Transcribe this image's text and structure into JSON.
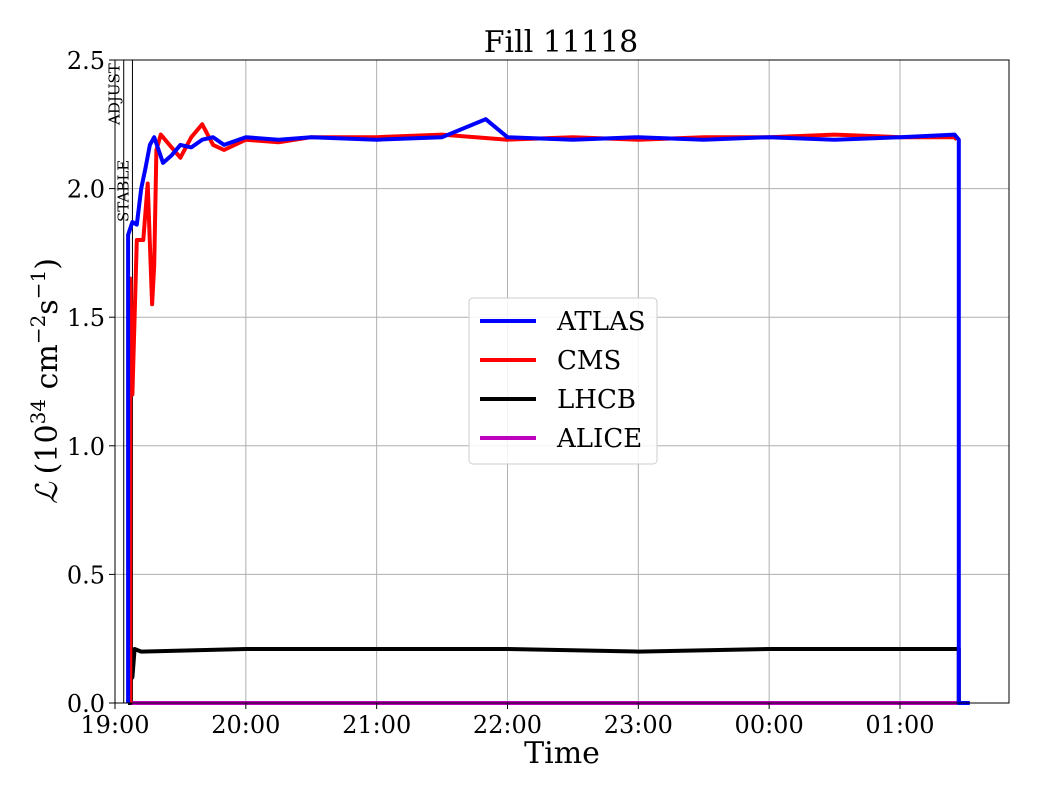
{
  "chart_data": {
    "type": "line",
    "title": "Fill 11118",
    "xlabel": "Time",
    "ylabel": {
      "symbol": "ℒ",
      "unit_open": "(10",
      "unit_exp1": "34",
      "unit_mid": " cm",
      "unit_exp2": "−2",
      "unit_s": "s",
      "unit_exp3": "−1",
      "unit_close": ")"
    },
    "ylim": [
      0.0,
      2.5
    ],
    "xlim": [
      "19:00",
      "01:50"
    ],
    "x_tick_labels": [
      "19:00",
      "20:00",
      "21:00",
      "22:00",
      "23:00",
      "00:00",
      "01:00"
    ],
    "y_tick_labels": [
      "0.0",
      "0.5",
      "1.0",
      "1.5",
      "2.0",
      "2.5"
    ],
    "grid": true,
    "legend_position": "center",
    "events": [
      {
        "label": "ADJUST",
        "time": "19:04"
      },
      {
        "label": "STABLE",
        "time": "19:08"
      }
    ],
    "series": [
      {
        "name": "ATLAS",
        "color": "#0000ff",
        "points": [
          [
            "19:06",
            0.0
          ],
          [
            "19:06",
            1.82
          ],
          [
            "19:08",
            1.87
          ],
          [
            "19:10",
            1.86
          ],
          [
            "19:12",
            2.0
          ],
          [
            "19:14",
            2.08
          ],
          [
            "19:16",
            2.17
          ],
          [
            "19:18",
            2.2
          ],
          [
            "19:20",
            2.15
          ],
          [
            "19:22",
            2.1
          ],
          [
            "19:26",
            2.13
          ],
          [
            "19:30",
            2.17
          ],
          [
            "19:35",
            2.16
          ],
          [
            "19:40",
            2.19
          ],
          [
            "19:45",
            2.2
          ],
          [
            "19:50",
            2.17
          ],
          [
            "20:00",
            2.2
          ],
          [
            "20:15",
            2.19
          ],
          [
            "20:30",
            2.2
          ],
          [
            "21:00",
            2.19
          ],
          [
            "21:30",
            2.2
          ],
          [
            "21:50",
            2.27
          ],
          [
            "22:00",
            2.2
          ],
          [
            "22:30",
            2.19
          ],
          [
            "23:00",
            2.2
          ],
          [
            "23:30",
            2.19
          ],
          [
            "00:00",
            2.2
          ],
          [
            "00:30",
            2.19
          ],
          [
            "01:00",
            2.2
          ],
          [
            "01:25",
            2.21
          ],
          [
            "01:27",
            2.19
          ],
          [
            "01:27",
            0.0
          ],
          [
            "01:32",
            0.0
          ]
        ]
      },
      {
        "name": "CMS",
        "color": "#ff0000",
        "points": [
          [
            "19:07",
            0.0
          ],
          [
            "19:07",
            1.65
          ],
          [
            "19:08",
            1.2
          ],
          [
            "19:10",
            1.8
          ],
          [
            "19:13",
            1.8
          ],
          [
            "19:15",
            2.02
          ],
          [
            "19:17",
            1.55
          ],
          [
            "19:18",
            1.7
          ],
          [
            "19:19",
            2.15
          ],
          [
            "19:21",
            2.21
          ],
          [
            "19:25",
            2.17
          ],
          [
            "19:30",
            2.12
          ],
          [
            "19:35",
            2.2
          ],
          [
            "19:40",
            2.25
          ],
          [
            "19:45",
            2.17
          ],
          [
            "19:50",
            2.15
          ],
          [
            "20:00",
            2.19
          ],
          [
            "20:15",
            2.18
          ],
          [
            "20:30",
            2.2
          ],
          [
            "21:00",
            2.2
          ],
          [
            "21:30",
            2.21
          ],
          [
            "22:00",
            2.19
          ],
          [
            "22:30",
            2.2
          ],
          [
            "23:00",
            2.19
          ],
          [
            "23:30",
            2.2
          ],
          [
            "00:00",
            2.2
          ],
          [
            "00:30",
            2.21
          ],
          [
            "01:00",
            2.2
          ],
          [
            "01:25",
            2.2
          ],
          [
            "01:26",
            2.19
          ]
        ]
      },
      {
        "name": "LHCB",
        "color": "#000000",
        "points": [
          [
            "19:06",
            0.0
          ],
          [
            "19:07",
            0.0
          ],
          [
            "19:07",
            0.09
          ],
          [
            "19:08",
            0.1
          ],
          [
            "19:09",
            0.21
          ],
          [
            "19:12",
            0.2
          ],
          [
            "20:00",
            0.21
          ],
          [
            "21:00",
            0.21
          ],
          [
            "22:00",
            0.21
          ],
          [
            "23:00",
            0.2
          ],
          [
            "00:00",
            0.21
          ],
          [
            "01:00",
            0.21
          ],
          [
            "01:25",
            0.21
          ],
          [
            "01:27",
            0.21
          ],
          [
            "01:27",
            0.0
          ]
        ]
      },
      {
        "name": "ALICE",
        "color": "#bf00bf",
        "points": [
          [
            "19:06",
            0.0
          ],
          [
            "01:27",
            0.0
          ]
        ]
      }
    ]
  }
}
